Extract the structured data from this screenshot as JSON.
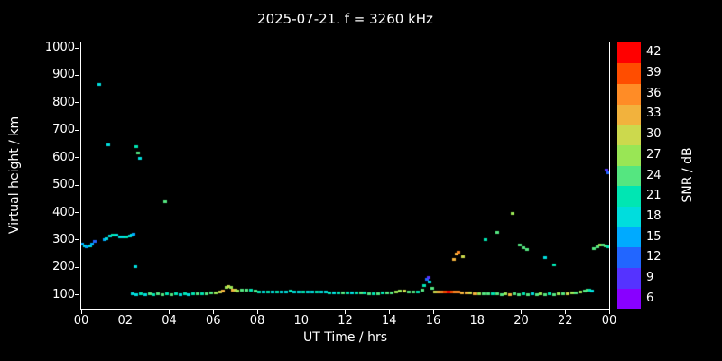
{
  "chart_data": {
    "type": "scatter",
    "title": "2025-07-21. f = 3260 kHz",
    "xlabel": "UT Time / hrs",
    "ylabel": "Virtual height / km",
    "xlim": [
      0,
      24
    ],
    "ylim": [
      50,
      1020
    ],
    "grid": false,
    "style": {
      "background": "#000000",
      "foreground": "#ffffff"
    },
    "xticks": {
      "values": [
        0,
        2,
        4,
        6,
        8,
        10,
        12,
        14,
        16,
        18,
        20,
        22,
        24
      ],
      "labels": [
        "00",
        "02",
        "04",
        "06",
        "08",
        "10",
        "12",
        "14",
        "16",
        "18",
        "20",
        "22",
        "00"
      ]
    },
    "yticks": {
      "values": [
        100,
        200,
        300,
        400,
        500,
        600,
        700,
        800,
        900,
        1000
      ],
      "labels": [
        "100",
        "200",
        "300",
        "400",
        "500",
        "600",
        "700",
        "800",
        "900",
        "1000"
      ]
    },
    "colorbar": {
      "label": "SNR / dB",
      "ticks": [
        6,
        9,
        12,
        15,
        18,
        21,
        24,
        27,
        30,
        33,
        36,
        39,
        42
      ],
      "colors": [
        "#8800ff",
        "#5533ff",
        "#2266ff",
        "#00aaff",
        "#00dddd",
        "#00e6b3",
        "#55e680",
        "#99e655",
        "#ccd94d",
        "#f2b23d",
        "#ff8c26",
        "#ff4d00",
        "#ff0000"
      ]
    },
    "points": [
      [
        0.05,
        288,
        15
      ],
      [
        0.15,
        280,
        18
      ],
      [
        0.25,
        276,
        15
      ],
      [
        0.4,
        280,
        18
      ],
      [
        0.5,
        286,
        15
      ],
      [
        0.6,
        298,
        12
      ],
      [
        0.8,
        868,
        18
      ],
      [
        1.05,
        302,
        15
      ],
      [
        1.15,
        308,
        18
      ],
      [
        1.3,
        315,
        18
      ],
      [
        1.45,
        320,
        21
      ],
      [
        1.6,
        318,
        18
      ],
      [
        1.75,
        314,
        18
      ],
      [
        1.9,
        312,
        18
      ],
      [
        2.05,
        312,
        21
      ],
      [
        2.2,
        316,
        18
      ],
      [
        2.3,
        320,
        18
      ],
      [
        2.4,
        322,
        15
      ],
      [
        1.25,
        648,
        18
      ],
      [
        2.5,
        642,
        21
      ],
      [
        2.6,
        618,
        24
      ],
      [
        2.65,
        600,
        18
      ],
      [
        2.45,
        205,
        18
      ],
      [
        3.8,
        442,
        24
      ],
      [
        2.35,
        105,
        18
      ],
      [
        2.5,
        104,
        18
      ],
      [
        2.7,
        105,
        21
      ],
      [
        2.9,
        104,
        18
      ],
      [
        3.1,
        105,
        24
      ],
      [
        3.3,
        104,
        21
      ],
      [
        3.5,
        105,
        24
      ],
      [
        3.7,
        104,
        24
      ],
      [
        3.9,
        105,
        21
      ],
      [
        4.1,
        104,
        24
      ],
      [
        4.3,
        105,
        21
      ],
      [
        4.5,
        104,
        18
      ],
      [
        4.7,
        105,
        21
      ],
      [
        4.9,
        104,
        18
      ],
      [
        5.1,
        105,
        21
      ],
      [
        5.3,
        106,
        24
      ],
      [
        5.5,
        106,
        21
      ],
      [
        5.7,
        107,
        24
      ],
      [
        5.9,
        108,
        24
      ],
      [
        6.1,
        110,
        27
      ],
      [
        6.3,
        112,
        30
      ],
      [
        6.45,
        115,
        33
      ],
      [
        6.6,
        128,
        27
      ],
      [
        6.7,
        132,
        30
      ],
      [
        6.8,
        128,
        27
      ],
      [
        6.9,
        120,
        33
      ],
      [
        7.0,
        118,
        30
      ],
      [
        7.1,
        116,
        27
      ],
      [
        7.3,
        118,
        24
      ],
      [
        7.5,
        120,
        24
      ],
      [
        7.7,
        118,
        21
      ],
      [
        7.9,
        116,
        24
      ],
      [
        8.1,
        114,
        21
      ],
      [
        8.3,
        113,
        18
      ],
      [
        8.5,
        114,
        21
      ],
      [
        8.7,
        113,
        18
      ],
      [
        8.9,
        112,
        21
      ],
      [
        9.1,
        113,
        18
      ],
      [
        9.3,
        114,
        18
      ],
      [
        9.5,
        115,
        21
      ],
      [
        9.7,
        114,
        18
      ],
      [
        9.9,
        113,
        18
      ],
      [
        10.1,
        114,
        21
      ],
      [
        10.3,
        113,
        18
      ],
      [
        10.5,
        112,
        18
      ],
      [
        10.7,
        113,
        21
      ],
      [
        10.9,
        112,
        18
      ],
      [
        11.1,
        111,
        18
      ],
      [
        11.3,
        110,
        21
      ],
      [
        11.5,
        110,
        18
      ],
      [
        11.7,
        110,
        21
      ],
      [
        11.9,
        109,
        24
      ],
      [
        12.1,
        110,
        21
      ],
      [
        12.3,
        109,
        18
      ],
      [
        12.5,
        108,
        21
      ],
      [
        12.7,
        108,
        24
      ],
      [
        12.9,
        108,
        21
      ],
      [
        13.1,
        107,
        24
      ],
      [
        13.3,
        107,
        21
      ],
      [
        13.5,
        107,
        24
      ],
      [
        13.7,
        108,
        21
      ],
      [
        13.9,
        108,
        24
      ],
      [
        14.1,
        110,
        24
      ],
      [
        14.3,
        112,
        27
      ],
      [
        14.5,
        115,
        27
      ],
      [
        14.7,
        117,
        30
      ],
      [
        14.9,
        113,
        24
      ],
      [
        15.1,
        112,
        24
      ],
      [
        15.3,
        112,
        21
      ],
      [
        15.5,
        118,
        24
      ],
      [
        15.6,
        135,
        21
      ],
      [
        15.7,
        158,
        12
      ],
      [
        15.78,
        165,
        9
      ],
      [
        15.85,
        148,
        18
      ],
      [
        15.95,
        125,
        24
      ],
      [
        16.1,
        113,
        30
      ],
      [
        16.25,
        112,
        33
      ],
      [
        16.4,
        112,
        36
      ],
      [
        16.55,
        113,
        39
      ],
      [
        16.7,
        114,
        42
      ],
      [
        16.85,
        113,
        39
      ],
      [
        17.0,
        112,
        36
      ],
      [
        17.15,
        111,
        36
      ],
      [
        17.3,
        110,
        33
      ],
      [
        17.5,
        109,
        33
      ],
      [
        17.7,
        108,
        30
      ],
      [
        17.9,
        107,
        33
      ],
      [
        18.1,
        106,
        27
      ],
      [
        18.3,
        106,
        24
      ],
      [
        18.5,
        105,
        24
      ],
      [
        18.7,
        105,
        21
      ],
      [
        18.9,
        105,
        24
      ],
      [
        19.1,
        104,
        24
      ],
      [
        19.3,
        105,
        27
      ],
      [
        19.5,
        104,
        33
      ],
      [
        19.7,
        105,
        24
      ],
      [
        19.9,
        104,
        24
      ],
      [
        20.1,
        105,
        21
      ],
      [
        20.3,
        104,
        24
      ],
      [
        20.5,
        105,
        18
      ],
      [
        20.7,
        104,
        24
      ],
      [
        20.9,
        105,
        27
      ],
      [
        21.1,
        104,
        24
      ],
      [
        21.3,
        105,
        21
      ],
      [
        21.5,
        104,
        24
      ],
      [
        21.7,
        105,
        27
      ],
      [
        21.9,
        106,
        24
      ],
      [
        22.1,
        107,
        30
      ],
      [
        22.3,
        108,
        27
      ],
      [
        22.5,
        109,
        24
      ],
      [
        22.7,
        112,
        27
      ],
      [
        22.9,
        115,
        24
      ],
      [
        23.0,
        118,
        24
      ],
      [
        23.1,
        120,
        21
      ],
      [
        23.2,
        116,
        18
      ],
      [
        16.95,
        232,
        33
      ],
      [
        17.05,
        252,
        33
      ],
      [
        17.15,
        258,
        36
      ],
      [
        17.35,
        242,
        30
      ],
      [
        18.4,
        302,
        21
      ],
      [
        18.9,
        330,
        24
      ],
      [
        19.6,
        400,
        27
      ],
      [
        19.95,
        282,
        24
      ],
      [
        20.1,
        274,
        24
      ],
      [
        20.25,
        268,
        24
      ],
      [
        21.1,
        238,
        18
      ],
      [
        21.5,
        212,
        21
      ],
      [
        23.3,
        270,
        24
      ],
      [
        23.45,
        277,
        24
      ],
      [
        23.6,
        282,
        27
      ],
      [
        23.72,
        284,
        24
      ],
      [
        23.85,
        281,
        24
      ],
      [
        23.95,
        276,
        21
      ],
      [
        23.88,
        558,
        9
      ],
      [
        23.95,
        546,
        12
      ]
    ]
  }
}
